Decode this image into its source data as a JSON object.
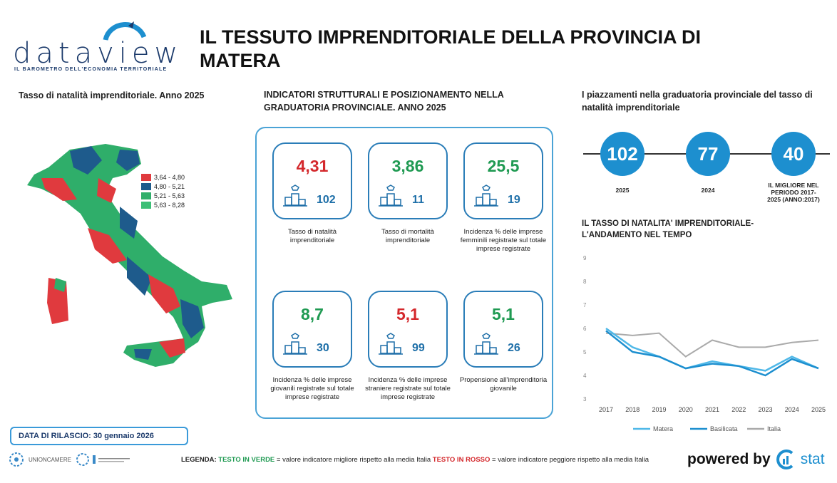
{
  "header": {
    "logo_text": "dataview",
    "logo_subtitle": "IL BAROMETRO DELL'ECONOMIA TERRITORIALE",
    "title": "IL TESSUTO IMPRENDITORIALE DELLA PROVINCIA DI MATERA"
  },
  "map": {
    "title": "Tasso di natalità imprenditoriale. Anno 2025",
    "legend": [
      {
        "label": "3,64 - 4,80",
        "color": "#e03a3e"
      },
      {
        "label": "4,80 - 5,21",
        "color": "#1e5b8c"
      },
      {
        "label": "5,21 - 5,63",
        "color": "#2fae6a"
      },
      {
        "label": "5,63 - 8,28",
        "color": "#3cbf76"
      }
    ]
  },
  "indicators": {
    "title": "INDICATORI STRUTTURALI E POSIZIONAMENTO NELLA GRADUATORIA PROVINCIALE. ANNO 2025",
    "cards": [
      {
        "value": "4,31",
        "rank": "102",
        "label": "Tasso di natalità imprenditoriale",
        "status": "red"
      },
      {
        "value": "3,86",
        "rank": "11",
        "label": "Tasso di mortalità imprenditoriale",
        "status": "green"
      },
      {
        "value": "25,5",
        "rank": "19",
        "label": "Incidenza % delle imprese femminili registrate sul totale imprese registrate",
        "status": "green"
      },
      {
        "value": "8,7",
        "rank": "30",
        "label": "Incidenza % delle imprese giovanili registrate sul totale imprese registrate",
        "status": "green"
      },
      {
        "value": "5,1",
        "rank": "99",
        "label": "Incidenza % delle imprese straniere registrate sul totale imprese registrate",
        "status": "red"
      },
      {
        "value": "5,1",
        "rank": "26",
        "label": "Propensione all'imprenditoria giovanile",
        "status": "green"
      }
    ]
  },
  "ranking": {
    "title": "I piazzamenti nella graduatoria provinciale del tasso di natalità imprenditoriale",
    "items": [
      {
        "value": "102",
        "label": "2025"
      },
      {
        "value": "77",
        "label": "2024"
      },
      {
        "value": "40",
        "label": "IL MIGLIORE NEL PERIODO 2017-2025 (ANNO:2017)"
      }
    ]
  },
  "chart_data": {
    "type": "line",
    "title": "IL TASSO DI NATALITA' IMPRENDITORIALE- L'ANDAMENTO NEL TEMPO",
    "categories": [
      "2017",
      "2018",
      "2019",
      "2020",
      "2021",
      "2022",
      "2023",
      "2024",
      "2025"
    ],
    "yticks": [
      "3",
      "4",
      "5",
      "6",
      "7",
      "8",
      "9"
    ],
    "ylim": [
      3,
      9
    ],
    "series": [
      {
        "name": "Matera",
        "color": "#4fb8e8",
        "values": [
          6.0,
          5.2,
          4.8,
          4.3,
          4.6,
          4.4,
          4.2,
          4.8,
          4.3
        ]
      },
      {
        "name": "Basilicata",
        "color": "#1d8fcf",
        "values": [
          5.9,
          5.0,
          4.8,
          4.3,
          4.5,
          4.4,
          4.0,
          4.7,
          4.3
        ]
      },
      {
        "name": "Italia",
        "color": "#aaaaaa",
        "values": [
          5.8,
          5.7,
          5.8,
          4.8,
          5.5,
          5.2,
          5.2,
          5.4,
          5.5
        ]
      }
    ]
  },
  "footer": {
    "release": "DATA DI RILASCIO: 30 gennaio 2026",
    "unioncamere": "UNIONCAMERE",
    "legend_prefix": "LEGENDA:",
    "legend_green": "TESTO IN VERDE",
    "legend_green_desc": "= valore indicatore migliore rispetto alla media Italia",
    "legend_red": "TESTO IN ROSSO",
    "legend_red_desc": "= valore indicatore peggiore rispetto alla media Italia",
    "powered_by": "powered by",
    "brand": "stat"
  }
}
